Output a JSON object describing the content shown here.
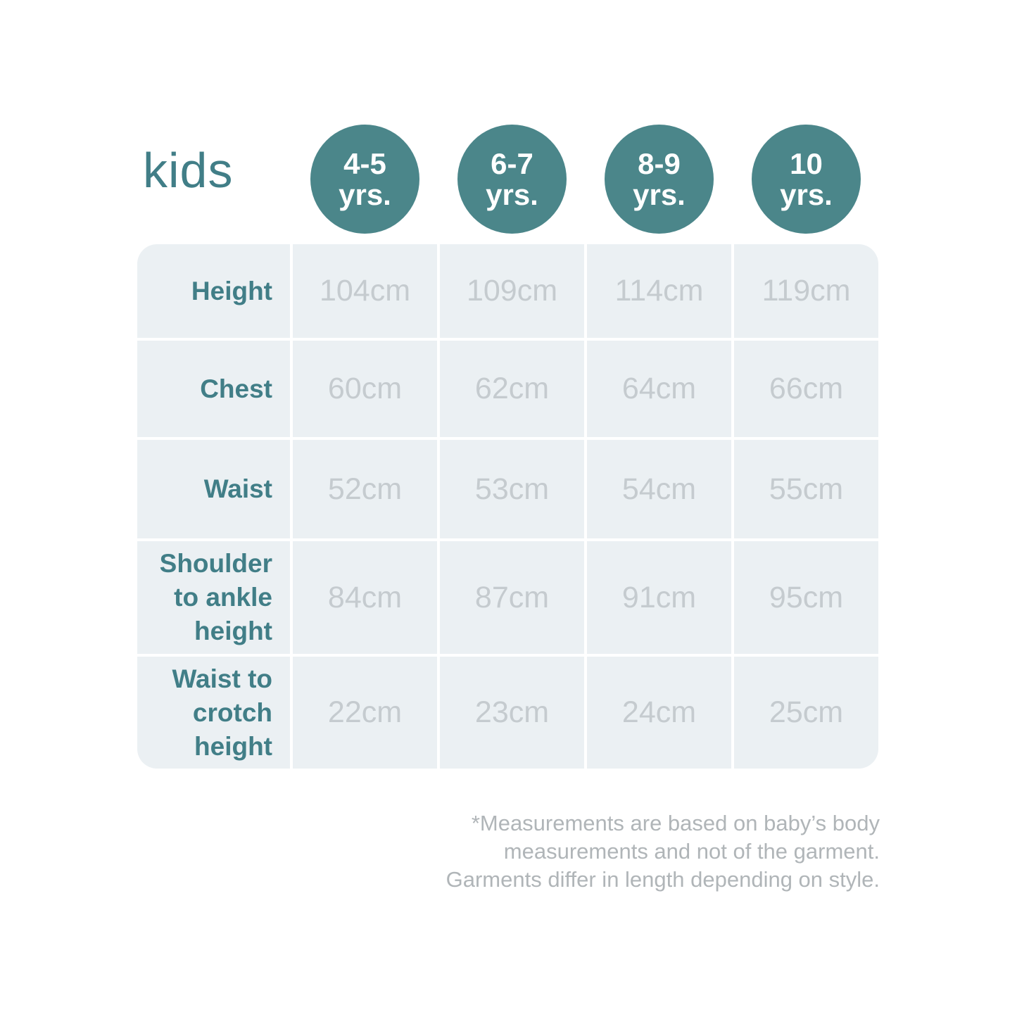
{
  "title": "kids",
  "header": {
    "circles": [
      {
        "line1": "4-5",
        "line2": "yrs."
      },
      {
        "line1": "6-7",
        "line2": "yrs."
      },
      {
        "line1": "8-9",
        "line2": "yrs."
      },
      {
        "line1": "10",
        "line2": "yrs."
      }
    ]
  },
  "table": {
    "rows": [
      {
        "label": "Height",
        "values": [
          "104cm",
          "109cm",
          "114cm",
          "119cm"
        ]
      },
      {
        "label": "Chest",
        "values": [
          "60cm",
          "62cm",
          "64cm",
          "66cm"
        ]
      },
      {
        "label": "Waist",
        "values": [
          "52cm",
          "53cm",
          "54cm",
          "55cm"
        ]
      },
      {
        "label": "Shoulder to ankle height",
        "values": [
          "84cm",
          "87cm",
          "91cm",
          "95cm"
        ]
      },
      {
        "label": "Waist to crotch height",
        "values": [
          "22cm",
          "23cm",
          "24cm",
          "25cm"
        ]
      }
    ]
  },
  "footnote": {
    "lines": [
      "*Measurements are based on baby’s body",
      "measurements and not of the garment.",
      "Garments differ in length depending on style."
    ]
  },
  "colors": {
    "accent_teal": "#4B868A",
    "label_teal": "#417E87",
    "cell_background": "#EBF0F3",
    "value_gray": "#C5CBCF",
    "footnote_gray": "#B0B5B8",
    "divider_white": "#FFFFFF"
  },
  "chart_data": {
    "type": "table",
    "title": "kids",
    "columns": [
      "4-5 yrs.",
      "6-7 yrs.",
      "8-9 yrs.",
      "10 yrs."
    ],
    "row_labels": [
      "Height",
      "Chest",
      "Waist",
      "Shoulder to ankle height",
      "Waist to crotch height"
    ],
    "units": "cm",
    "series": [
      {
        "name": "Height",
        "values": [
          104,
          109,
          114,
          119
        ]
      },
      {
        "name": "Chest",
        "values": [
          60,
          62,
          64,
          66
        ]
      },
      {
        "name": "Waist",
        "values": [
          52,
          53,
          54,
          55
        ]
      },
      {
        "name": "Shoulder to ankle height",
        "values": [
          84,
          87,
          91,
          95
        ]
      },
      {
        "name": "Waist to crotch height",
        "values": [
          22,
          23,
          24,
          25
        ]
      }
    ],
    "note": "*Measurements are based on baby’s body measurements and not of the garment. Garments differ in length depending on style."
  }
}
